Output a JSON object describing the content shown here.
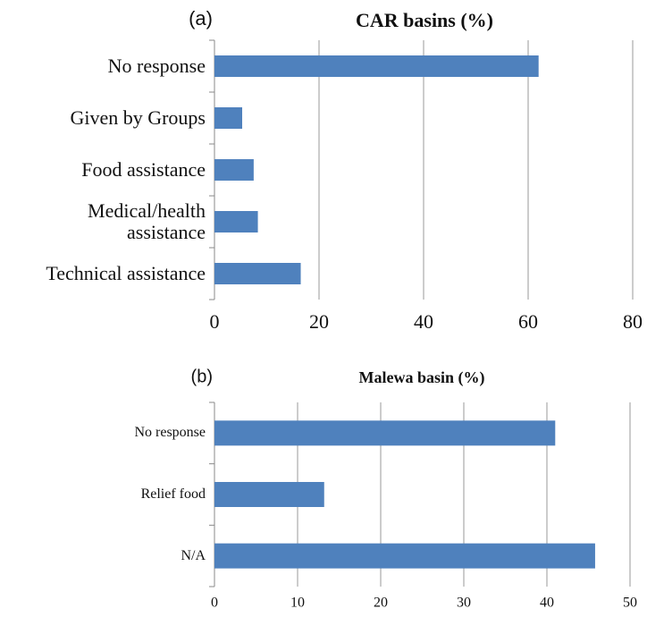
{
  "chart_data": [
    {
      "type": "barh",
      "label": "(a)",
      "title": "CAR basins (%)",
      "categories": [
        "No response",
        "Given by Groups",
        "Food assistance",
        "Medical/health assistance",
        "Technical assistance"
      ],
      "values": [
        62,
        5.3,
        7.5,
        8.3,
        16.5
      ],
      "color": "#4f81bd",
      "xlim": [
        0,
        80
      ],
      "xticks": [
        0,
        20,
        40,
        60,
        80
      ],
      "grid": true
    },
    {
      "type": "barh",
      "label": "(b)",
      "title": "Malewa basin (%)",
      "categories": [
        "No response",
        "Relief food",
        "N/A"
      ],
      "values": [
        41,
        13.2,
        45.8
      ],
      "color": "#4f81bd",
      "xlim": [
        0,
        50
      ],
      "xticks": [
        0,
        10,
        20,
        30,
        40,
        50
      ],
      "grid": true
    }
  ]
}
